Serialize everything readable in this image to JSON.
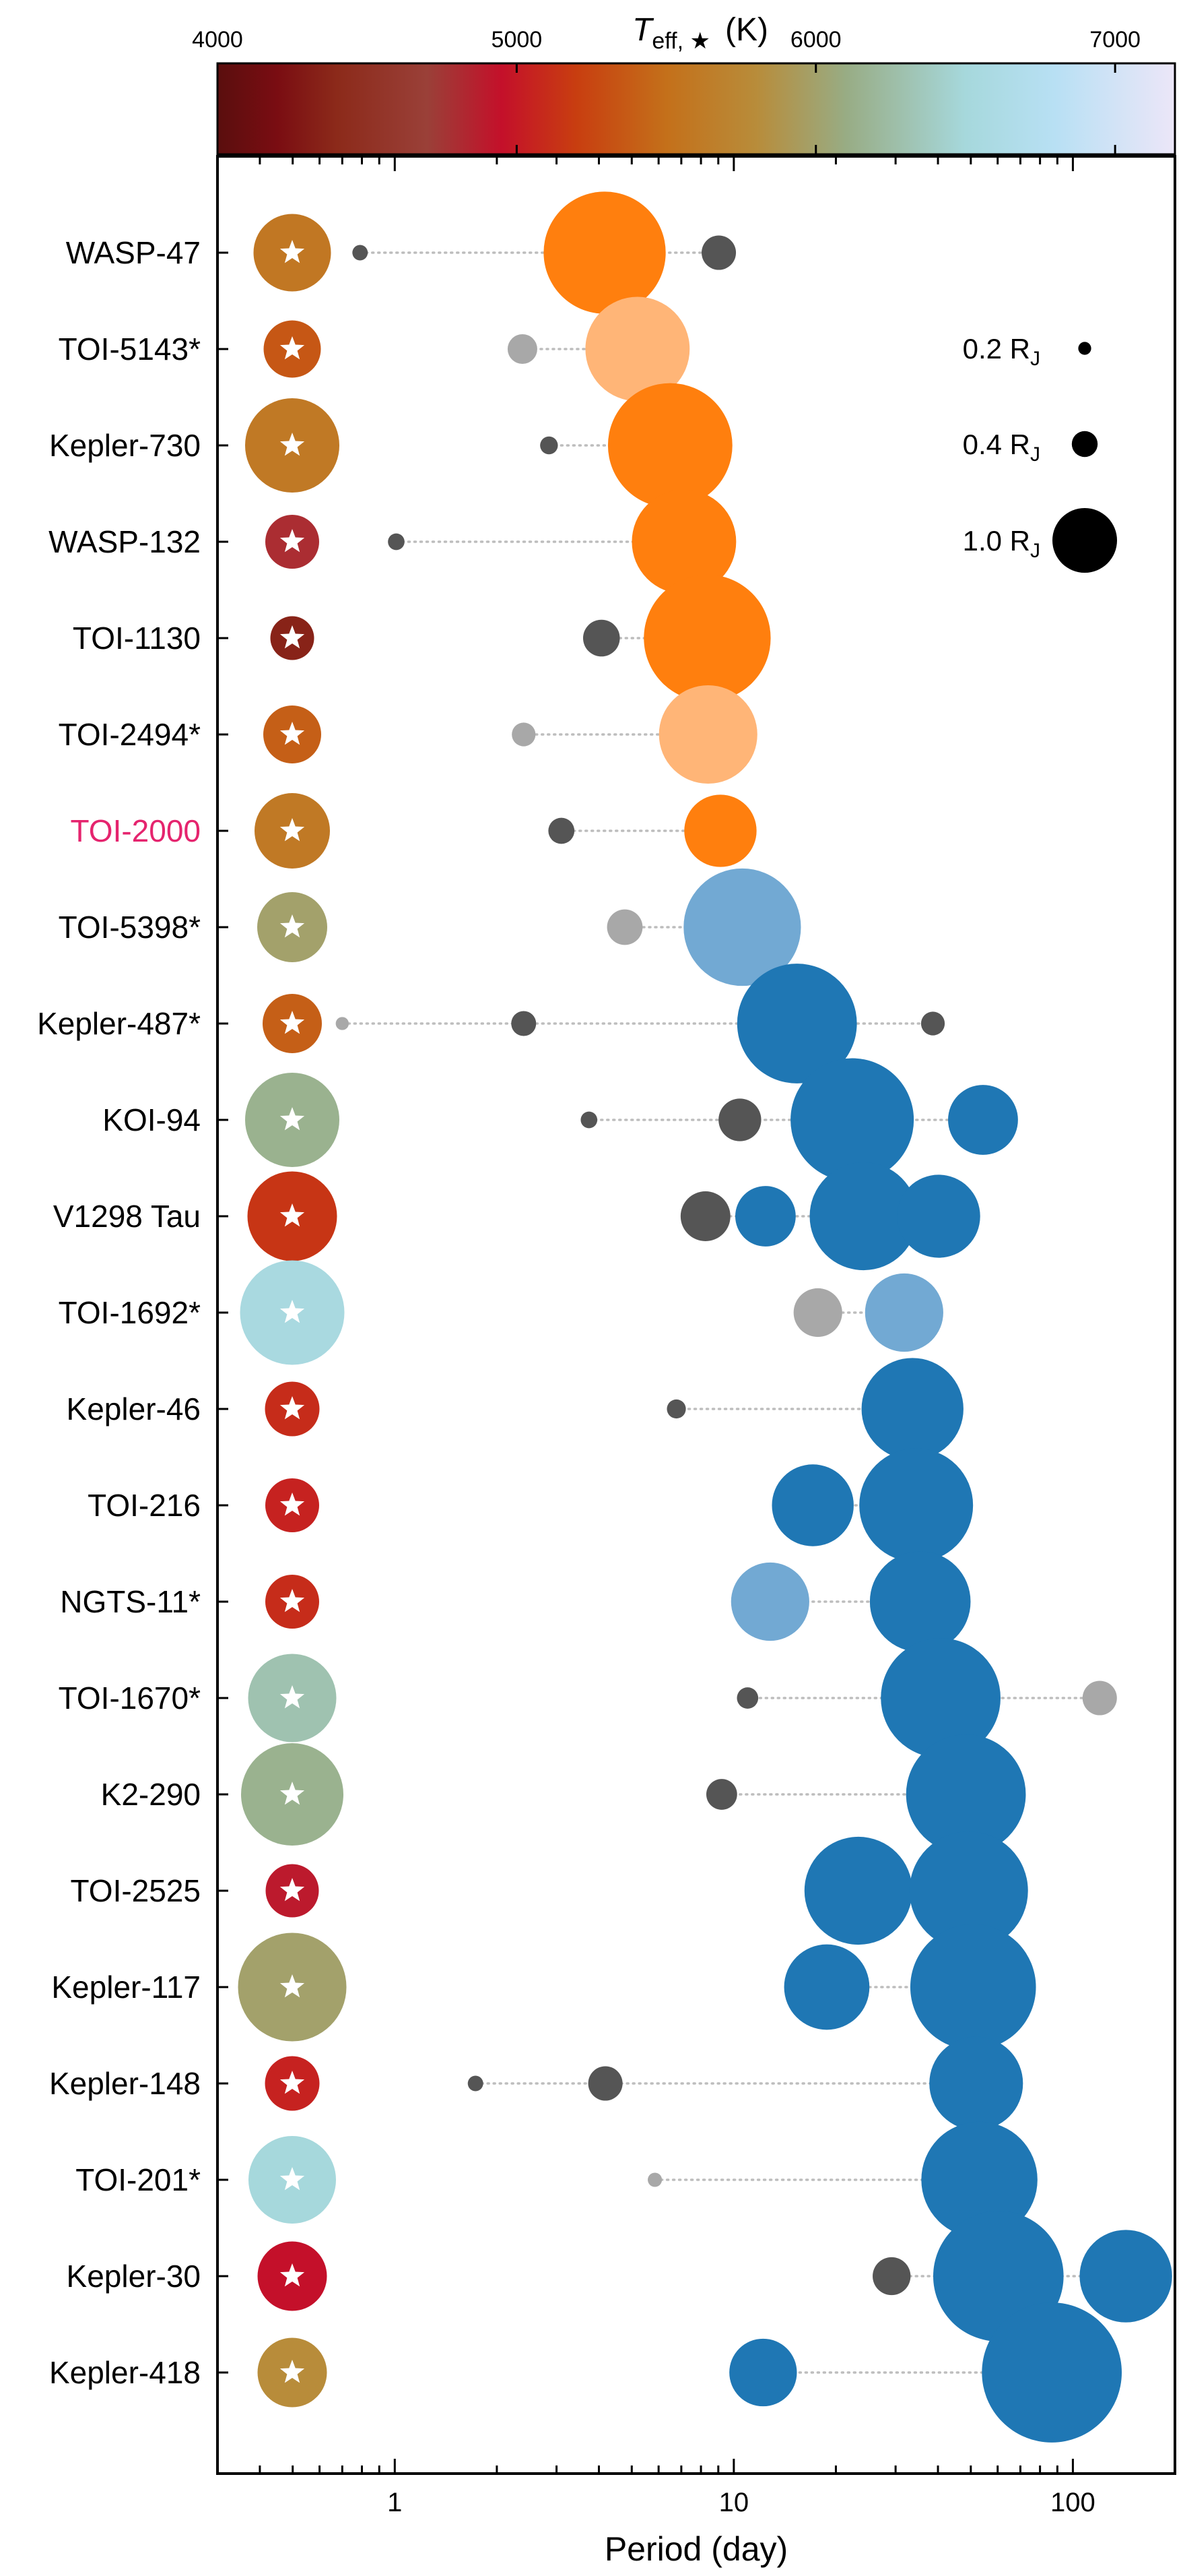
{
  "chart_data": {
    "type": "scatter",
    "xlabel": "Period (day)",
    "x_scale": "log",
    "xlim": [
      0.3,
      200
    ],
    "x_ticks": [
      {
        "value": 1,
        "label": "1"
      },
      {
        "value": 10,
        "label": "10"
      },
      {
        "value": 100,
        "label": "100"
      }
    ],
    "colorbar": {
      "label_main": "T",
      "label_sub": "eff, ★",
      "label_unit": "(K)",
      "range": [
        4000,
        7200
      ],
      "ticks": [
        {
          "value": 4000,
          "label": "4000"
        },
        {
          "value": 5000,
          "label": "5000"
        },
        {
          "value": 6000,
          "label": "6000"
        },
        {
          "value": 7000,
          "label": "7000"
        }
      ],
      "stops": [
        {
          "t": 4000,
          "color": "#5a0e0e"
        },
        {
          "t": 4200,
          "color": "#7a0d12"
        },
        {
          "t": 4400,
          "color": "#8c2a1a"
        },
        {
          "t": 4700,
          "color": "#9a4038"
        },
        {
          "t": 4950,
          "color": "#c4102a"
        },
        {
          "t": 5200,
          "color": "#c83e10"
        },
        {
          "t": 5500,
          "color": "#c4701a"
        },
        {
          "t": 5800,
          "color": "#b88c3a"
        },
        {
          "t": 6100,
          "color": "#98ac84"
        },
        {
          "t": 6500,
          "color": "#a6d8dc"
        },
        {
          "t": 6800,
          "color": "#b8e0f4"
        },
        {
          "t": 7200,
          "color": "#ece6f8"
        }
      ]
    },
    "size_legend": [
      {
        "label": "0.2 R",
        "sub": "J",
        "radius_rj": 0.2
      },
      {
        "label": "0.4 R",
        "sub": "J",
        "radius_rj": 0.4
      },
      {
        "label": "1.0 R",
        "sub": "J",
        "radius_rj": 1.0
      }
    ],
    "systems": [
      {
        "name": "WASP-47",
        "teff": 5580,
        "star_r": 1.15,
        "planets": [
          {
            "period": 0.79,
            "radius": 0.13,
            "kind": "dark"
          },
          {
            "period": 4.16,
            "radius": 1.03,
            "kind": "orange"
          },
          {
            "period": 9.03,
            "radius": 0.29,
            "kind": "dark"
          }
        ]
      },
      {
        "name": "TOI-5143*",
        "teff": 5350,
        "star_r": 0.85,
        "planets": [
          {
            "period": 2.38,
            "radius": 0.25,
            "kind": "light-gray"
          },
          {
            "period": 5.2,
            "radius": 0.88,
            "kind": "light-orange"
          }
        ]
      },
      {
        "name": "Kepler-730",
        "teff": 5600,
        "star_r": 1.4,
        "planets": [
          {
            "period": 2.85,
            "radius": 0.15,
            "kind": "dark"
          },
          {
            "period": 6.49,
            "radius": 1.05,
            "kind": "orange"
          }
        ]
      },
      {
        "name": "WASP-132",
        "teff": 4800,
        "star_r": 0.8,
        "planets": [
          {
            "period": 1.01,
            "radius": 0.14,
            "kind": "dark"
          },
          {
            "period": 7.13,
            "radius": 0.88,
            "kind": "orange"
          }
        ]
      },
      {
        "name": "TOI-1130",
        "teff": 4350,
        "star_r": 0.65,
        "planets": [
          {
            "period": 4.07,
            "radius": 0.31,
            "kind": "dark"
          },
          {
            "period": 8.35,
            "radius": 1.07,
            "kind": "orange"
          }
        ]
      },
      {
        "name": "TOI-2494*",
        "teff": 5400,
        "star_r": 0.86,
        "planets": [
          {
            "period": 2.4,
            "radius": 0.2,
            "kind": "light-gray"
          },
          {
            "period": 8.4,
            "radius": 0.83,
            "kind": "light-orange"
          }
        ]
      },
      {
        "name": "TOI-2000",
        "teff": 5600,
        "star_r": 1.12,
        "highlight": true,
        "planets": [
          {
            "period": 3.1,
            "radius": 0.22,
            "kind": "dark"
          },
          {
            "period": 9.13,
            "radius": 0.61,
            "kind": "orange"
          }
        ]
      },
      {
        "name": "TOI-5398*",
        "teff": 6000,
        "star_r": 1.04,
        "planets": [
          {
            "period": 4.77,
            "radius": 0.3,
            "kind": "light-gray"
          },
          {
            "period": 10.59,
            "radius": 0.99,
            "kind": "light-blue"
          }
        ]
      },
      {
        "name": "Kepler-487*",
        "teff": 5400,
        "star_r": 0.88,
        "planets": [
          {
            "period": 0.7,
            "radius": 0.11,
            "kind": "light-gray"
          },
          {
            "period": 2.4,
            "radius": 0.21,
            "kind": "dark"
          },
          {
            "period": 15.36,
            "radius": 1.01,
            "kind": "blue"
          },
          {
            "period": 38.65,
            "radius": 0.2,
            "kind": "dark"
          }
        ]
      },
      {
        "name": "KOI-94",
        "teff": 6150,
        "star_r": 1.4,
        "planets": [
          {
            "period": 3.74,
            "radius": 0.14,
            "kind": "dark"
          },
          {
            "period": 10.42,
            "radius": 0.36,
            "kind": "dark"
          },
          {
            "period": 22.34,
            "radius": 1.04,
            "kind": "blue"
          },
          {
            "period": 54.32,
            "radius": 0.59,
            "kind": "blue"
          }
        ]
      },
      {
        "name": "V1298 Tau",
        "teff": 5150,
        "star_r": 1.33,
        "planets": [
          {
            "period": 8.25,
            "radius": 0.42,
            "kind": "dark"
          },
          {
            "period": 12.4,
            "radius": 0.51,
            "kind": "blue"
          },
          {
            "period": 24.14,
            "radius": 0.91,
            "kind": "blue"
          },
          {
            "period": 40.2,
            "radius": 0.7,
            "kind": "blue"
          }
        ]
      },
      {
        "name": "TOI-1692*",
        "teff": 6550,
        "star_r": 1.55,
        "planets": [
          {
            "period": 17.7,
            "radius": 0.41,
            "kind": "light-gray"
          },
          {
            "period": 31.8,
            "radius": 0.66,
            "kind": "light-blue"
          }
        ]
      },
      {
        "name": "Kepler-46",
        "teff": 5100,
        "star_r": 0.81,
        "planets": [
          {
            "period": 6.77,
            "radius": 0.16,
            "kind": "dark"
          },
          {
            "period": 33.65,
            "radius": 0.86,
            "kind": "blue"
          }
        ]
      },
      {
        "name": "TOI-216",
        "teff": 5050,
        "star_r": 0.8,
        "planets": [
          {
            "period": 17.1,
            "radius": 0.69,
            "kind": "blue"
          },
          {
            "period": 34.5,
            "radius": 0.96,
            "kind": "blue"
          }
        ]
      },
      {
        "name": "NGTS-11*",
        "teff": 5100,
        "star_r": 0.8,
        "planets": [
          {
            "period": 12.8,
            "radius": 0.66,
            "kind": "light-blue"
          },
          {
            "period": 35.46,
            "radius": 0.85,
            "kind": "blue"
          }
        ]
      },
      {
        "name": "TOI-1670*",
        "teff": 6300,
        "star_r": 1.31,
        "planets": [
          {
            "period": 10.98,
            "radius": 0.18,
            "kind": "dark"
          },
          {
            "period": 40.75,
            "radius": 1.01,
            "kind": "blue"
          },
          {
            "period": 120,
            "radius": 0.29,
            "kind": "light-gray"
          }
        ]
      },
      {
        "name": "K2-290",
        "teff": 6150,
        "star_r": 1.52,
        "planets": [
          {
            "period": 9.21,
            "radius": 0.26,
            "kind": "dark"
          },
          {
            "period": 48.37,
            "radius": 1.01,
            "kind": "blue"
          }
        ]
      },
      {
        "name": "TOI-2525",
        "teff": 4900,
        "star_r": 0.79,
        "planets": [
          {
            "period": 23.3,
            "radius": 0.91,
            "kind": "blue"
          },
          {
            "period": 49.3,
            "radius": 1.0,
            "kind": "blue"
          }
        ]
      },
      {
        "name": "Kepler-117",
        "teff": 6000,
        "star_r": 1.61,
        "planets": [
          {
            "period": 18.8,
            "radius": 0.72,
            "kind": "blue"
          },
          {
            "period": 50.79,
            "radius": 1.06,
            "kind": "blue"
          }
        ]
      },
      {
        "name": "Kepler-148",
        "teff": 5050,
        "star_r": 0.81,
        "planets": [
          {
            "period": 1.73,
            "radius": 0.13,
            "kind": "dark"
          },
          {
            "period": 4.18,
            "radius": 0.29,
            "kind": "dark"
          },
          {
            "period": 51.85,
            "radius": 0.79,
            "kind": "blue"
          }
        ]
      },
      {
        "name": "TOI-201*",
        "teff": 6500,
        "star_r": 1.3,
        "planets": [
          {
            "period": 5.85,
            "radius": 0.12,
            "kind": "light-gray"
          },
          {
            "period": 53.0,
            "radius": 0.98,
            "kind": "blue"
          }
        ]
      },
      {
        "name": "Kepler-30",
        "teff": 4950,
        "star_r": 1.03,
        "planets": [
          {
            "period": 29.2,
            "radius": 0.32,
            "kind": "dark"
          },
          {
            "period": 60.3,
            "radius": 1.1,
            "kind": "blue"
          },
          {
            "period": 143.3,
            "radius": 0.78,
            "kind": "blue"
          }
        ]
      },
      {
        "name": "Kepler-418",
        "teff": 5800,
        "star_r": 1.03,
        "planets": [
          {
            "period": 12.2,
            "radius": 0.57,
            "kind": "blue"
          },
          {
            "period": 86.68,
            "radius": 1.18,
            "kind": "blue"
          }
        ]
      }
    ],
    "planet_colors": {
      "orange": "#ff7f0e",
      "light-orange": "#ffb577",
      "blue": "#1f77b4",
      "light-blue": "#72a9d3",
      "dark": "#555555",
      "light-gray": "#a8a8a8"
    },
    "label_colors": {
      "normal": "#000000",
      "highlight": "#e5246e"
    },
    "star_glyph_color": "#ffffff",
    "connector_color": "#bdbdbd"
  }
}
